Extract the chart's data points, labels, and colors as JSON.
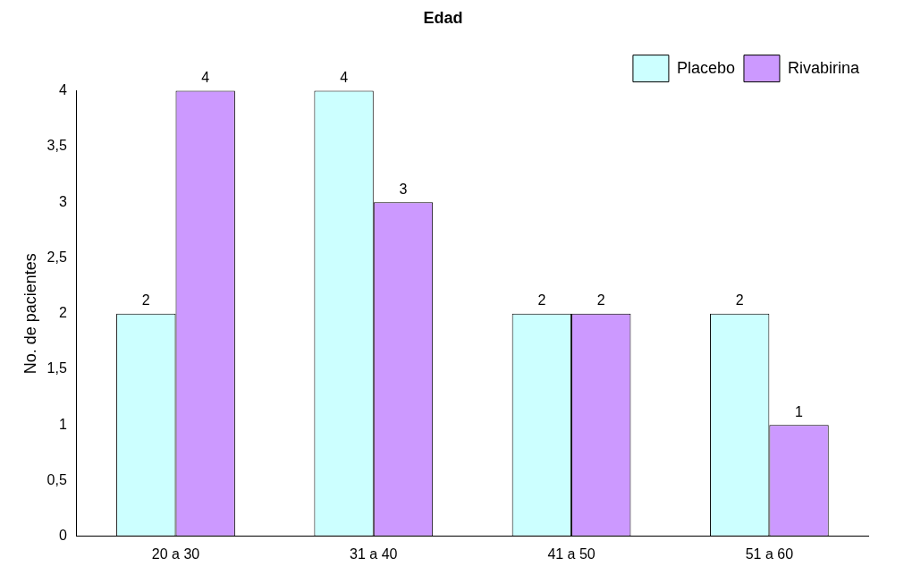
{
  "chart_data": {
    "type": "bar",
    "title": "Edad",
    "ylabel": "No. de pacientes",
    "categories": [
      "20 a 30",
      "31 a 40",
      "41 a 50",
      "51 a 60"
    ],
    "series": [
      {
        "name": "Placebo",
        "color": "#ccffff",
        "values": [
          2,
          4,
          2,
          2
        ]
      },
      {
        "name": "Rivabirina",
        "color": "#cc99ff",
        "values": [
          4,
          3,
          2,
          1
        ]
      }
    ],
    "ylim": [
      0,
      4
    ],
    "yticks": [
      0,
      {
        "value": 0.5,
        "label": "0,5"
      },
      1,
      {
        "value": 1.5,
        "label": "1,5"
      },
      2,
      {
        "value": 2.5,
        "label": "2,5"
      },
      3,
      {
        "value": 3.5,
        "label": "3,5"
      },
      4
    ],
    "grid": false,
    "legend": "top right",
    "data_labels": true
  }
}
